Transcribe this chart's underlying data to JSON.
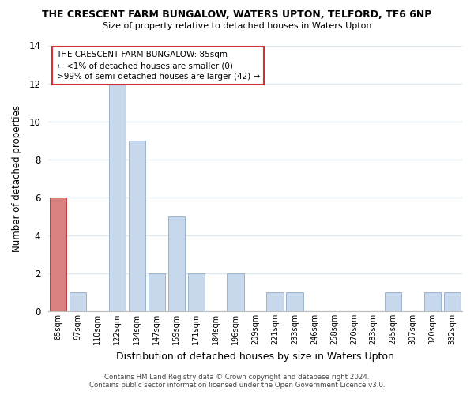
{
  "title": "THE CRESCENT FARM BUNGALOW, WATERS UPTON, TELFORD, TF6 6NP",
  "subtitle": "Size of property relative to detached houses in Waters Upton",
  "xlabel": "Distribution of detached houses by size in Waters Upton",
  "ylabel": "Number of detached properties",
  "bar_color": "#c8d8ec",
  "bar_edge_color": "#9ab4cc",
  "highlight_color": "#d98080",
  "highlight_edge_color": "#c04040",
  "bins": [
    "85sqm",
    "97sqm",
    "110sqm",
    "122sqm",
    "134sqm",
    "147sqm",
    "159sqm",
    "171sqm",
    "184sqm",
    "196sqm",
    "209sqm",
    "221sqm",
    "233sqm",
    "246sqm",
    "258sqm",
    "270sqm",
    "283sqm",
    "295sqm",
    "307sqm",
    "320sqm",
    "332sqm"
  ],
  "values": [
    6,
    1,
    0,
    12,
    9,
    2,
    5,
    2,
    0,
    2,
    0,
    1,
    1,
    0,
    0,
    0,
    0,
    1,
    0,
    1,
    1
  ],
  "highlight_index": 0,
  "ylim": [
    0,
    14
  ],
  "yticks": [
    0,
    2,
    4,
    6,
    8,
    10,
    12,
    14
  ],
  "annotation_title": "THE CRESCENT FARM BUNGALOW: 85sqm",
  "annotation_line1": "← <1% of detached houses are smaller (0)",
  "annotation_line2": ">99% of semi-detached houses are larger (42) →",
  "footer1": "Contains HM Land Registry data © Crown copyright and database right 2024.",
  "footer2": "Contains public sector information licensed under the Open Government Licence v3.0.",
  "background_color": "#ffffff",
  "plot_bg_color": "#ffffff",
  "grid_color": "#dce8f0",
  "box_facecolor": "#ffffff",
  "box_edgecolor": "#cc3333",
  "fig_width": 6.0,
  "fig_height": 5.0,
  "dpi": 100
}
